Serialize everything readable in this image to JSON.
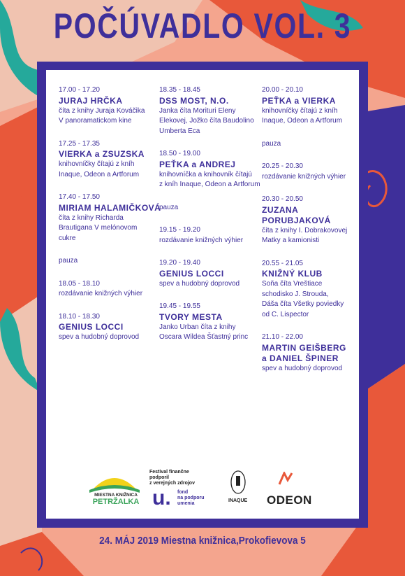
{
  "title": "POČÚVADLO VOL. 3",
  "columns": [
    [
      {
        "time": "17.00 - 17.20",
        "name": "JURAJ HRČKA",
        "desc": [
          "číta z knihy Juraja Kováčika",
          "V panoramatickom kine"
        ]
      },
      {
        "time": "17.25 - 17.35",
        "name": "VIERKA a ZSUZSKA",
        "desc": [
          "knihovníčky čítajú z kníh",
          "Inaque, Odeon a Artforum"
        ]
      },
      {
        "time": "17.40 - 17.50",
        "name": "MIRIAM HALAMIČKOVÁ",
        "desc": [
          "číta z knihy Richarda",
          "Brautigana V melónovom",
          "cukre"
        ]
      },
      {
        "time": "",
        "name": "",
        "desc": [
          "pauza"
        ]
      },
      {
        "time": "18.05 - 18.10",
        "name": "",
        "desc": [
          "rozdávanie knižných výhier"
        ]
      },
      {
        "time": "18.10 - 18.30",
        "name": "GENIUS LOCCI",
        "desc": [
          "spev a hudobný doprovod"
        ]
      }
    ],
    [
      {
        "time": "18.35 - 18.45",
        "name": "DSS MOST, N.O.",
        "desc": [
          "Janka číta Morituri Eleny",
          "Elekovej, Jožko číta Baudolino",
          "Umberta Eca"
        ]
      },
      {
        "time": "18.50 - 19.00",
        "name": "PEŤKA a ANDREJ",
        "desc": [
          "knihovníčka a knihovník čítajú",
          "z kníh Inaque, Odeon a Artforum"
        ]
      },
      {
        "time": "",
        "name": "",
        "desc": [
          "pauza"
        ]
      },
      {
        "time": "19.15 - 19.20",
        "name": "",
        "desc": [
          "rozdávanie knižných výhier"
        ]
      },
      {
        "time": "19.20 - 19.40",
        "name": "GENIUS LOCCI",
        "desc": [
          "spev a hudobný doprovod"
        ]
      },
      {
        "time": "19.45 - 19.55",
        "name": "TVORY MESTA",
        "desc": [
          "Janko Urban číta z knihy",
          "Oscara Wildea Šťastný princ"
        ]
      }
    ],
    [
      {
        "time": "20.00 - 20.10",
        "name": "PEŤKA a VIERKA",
        "desc": [
          "knihovníčky čítajú z kníh",
          "Inaque, Odeon a Artforum"
        ]
      },
      {
        "time": "",
        "name": "",
        "desc": [
          "pauza"
        ]
      },
      {
        "time": "20.25 - 20.30",
        "name": "",
        "desc": [
          "rozdávanie knižných výhier"
        ]
      },
      {
        "time": "20.30 - 20.50",
        "name": "ZUZANA PORUBJAKOVÁ",
        "desc": [
          "číta z knihy I. Dobrakovovej",
          "Matky a kamionisti"
        ]
      },
      {
        "time": "20.55 - 21.05",
        "name": "KNIŽNÝ KLUB",
        "desc": [
          "Soňa číta Vreštiace",
          "schodisko J. Strouda,",
          "Dáša číta Všetky poviedky",
          "od C. Lispector"
        ]
      },
      {
        "time": "21.10 - 22.00",
        "name": "MARTIN GEIŠBERG|a DANIEL ŠPINER",
        "desc": [
          "spev a hudobný doprovod"
        ]
      }
    ]
  ],
  "logos": {
    "library_line1": "MIESTNA KNIŽNICA",
    "library_line2": "PETRŽALKA",
    "fund_note": [
      "Festival finančne podporil",
      "z verejných zdrojov"
    ],
    "fund_name": [
      "fond",
      "na podporu",
      "umenia"
    ],
    "inaque": "INAQUE",
    "odeon": "ODEON"
  },
  "footer": "24. MÁJ 2019  Miestna knižnica,Prokofievova 5",
  "colors": {
    "accent": "#3e2f9a",
    "orange": "#e8583a",
    "teal": "#25a99b",
    "pink": "#f4a58e"
  }
}
